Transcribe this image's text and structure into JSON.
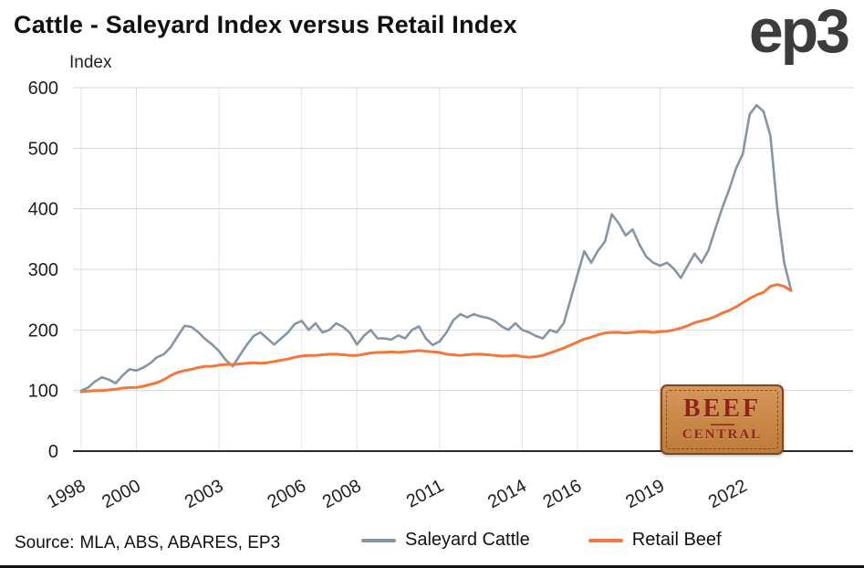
{
  "header": {
    "title": "Cattle - Saleyard Index versus Retail Index",
    "logo_text": "ep3"
  },
  "chart_data": {
    "type": "line",
    "title": "Cattle - Saleyard Index versus Retail Index",
    "xlabel": "",
    "ylabel": "Index",
    "ylim": [
      0,
      600
    ],
    "yticks": [
      0,
      100,
      200,
      300,
      400,
      500,
      600
    ],
    "xlim": [
      1997.7,
      2026
    ],
    "xticks": [
      1998,
      2000,
      2003,
      2006,
      2008,
      2011,
      2014,
      2016,
      2019,
      2022
    ],
    "grid": true,
    "legend_position": "bottom",
    "x_start": 1998.0,
    "x_step": 0.25,
    "series": [
      {
        "name": "Saleyard Cattle",
        "color": "#8496a6",
        "stroke_width": 2.6,
        "values": [
          100,
          105,
          115,
          122,
          118,
          112,
          125,
          135,
          133,
          138,
          145,
          155,
          160,
          172,
          190,
          207,
          205,
          196,
          185,
          176,
          165,
          150,
          140,
          158,
          175,
          190,
          196,
          186,
          176,
          186,
          196,
          210,
          215,
          200,
          211,
          196,
          200,
          211,
          205,
          195,
          176,
          190,
          200,
          186,
          186,
          184,
          191,
          186,
          200,
          206,
          186,
          175,
          181,
          196,
          216,
          226,
          221,
          226,
          222,
          220,
          215,
          206,
          200,
          211,
          200,
          196,
          190,
          186,
          200,
          196,
          211,
          250,
          291,
          330,
          311,
          331,
          346,
          391,
          376,
          356,
          366,
          341,
          321,
          311,
          306,
          311,
          301,
          286,
          306,
          326,
          311,
          331,
          366,
          401,
          431,
          466,
          491,
          556,
          571,
          561,
          521,
          401,
          311,
          266
        ]
      },
      {
        "name": "Retail Beef",
        "color": "#f5763b",
        "stroke_width": 3,
        "values": [
          98,
          99,
          100,
          100,
          101,
          102,
          104,
          105,
          105,
          107,
          110,
          113,
          118,
          125,
          130,
          133,
          135,
          138,
          140,
          140,
          142,
          143,
          143,
          144,
          145,
          146,
          145,
          146,
          148,
          150,
          152,
          155,
          157,
          158,
          158,
          159,
          160,
          160,
          159,
          158,
          158,
          160,
          162,
          163,
          163,
          164,
          163,
          164,
          165,
          166,
          165,
          164,
          163,
          160,
          159,
          158,
          159,
          160,
          160,
          159,
          158,
          157,
          157,
          158,
          156,
          155,
          156,
          158,
          162,
          166,
          170,
          175,
          180,
          185,
          188,
          192,
          195,
          196,
          196,
          195,
          196,
          197,
          197,
          196,
          197,
          198,
          200,
          203,
          207,
          212,
          215,
          218,
          222,
          228,
          232,
          238,
          245,
          252,
          258,
          262,
          272,
          275,
          272,
          265
        ]
      }
    ]
  },
  "colors": {
    "grid_horizontal": "#d7d7d7",
    "grid_vertical": "#e4e4e4",
    "axis": "#2b2b2b",
    "badge_bg": "#c98746",
    "badge_border": "#7a4a20",
    "badge_text": "#8f231c"
  },
  "footer": {
    "source_label": "Source:",
    "source_text": "MLA, ABS, ABARES, EP3"
  },
  "badge": {
    "line1": "BEEF",
    "line2": "CENTRAL"
  }
}
